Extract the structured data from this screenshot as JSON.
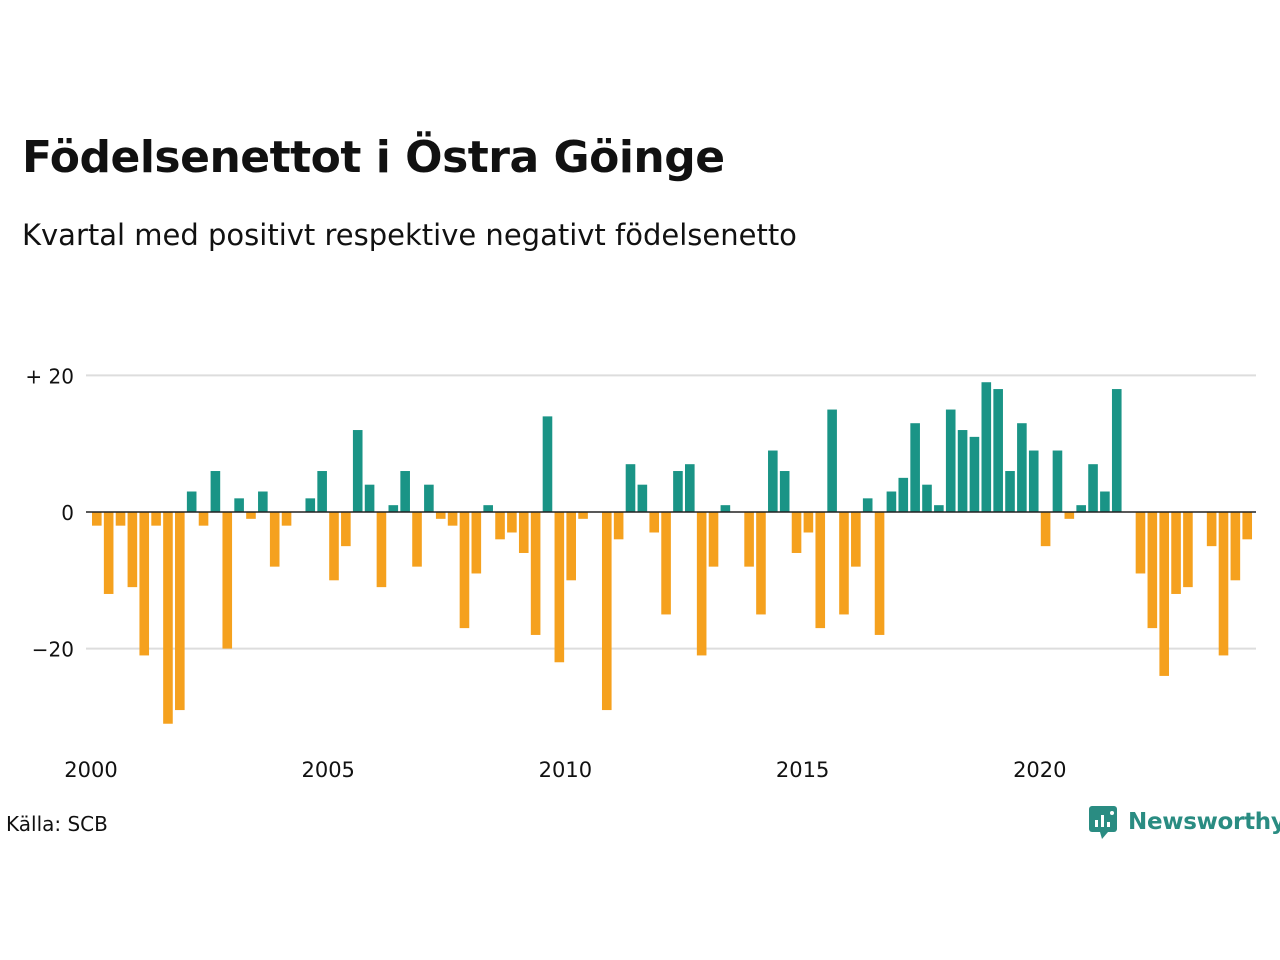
{
  "title": "Födelsenettot i Östra Göinge",
  "subtitle": "Kvartal med positivt respektive negativt födelsenetto",
  "source": "Källa: SCB",
  "brand": {
    "name": "Newsworthy",
    "icon": "newsworthy-logo-icon",
    "color": "#2a8c82"
  },
  "colors": {
    "positive": "#1a9486",
    "negative": "#f5a11e",
    "grid": "#dddddd",
    "zero": "#222222"
  },
  "chart_data": {
    "type": "bar",
    "x_start": "2000 Q1",
    "frequency": "quarterly",
    "ylim": [
      -33,
      21
    ],
    "y_ticks": [
      {
        "value": 20,
        "label": "+ 20"
      },
      {
        "value": 0,
        "label": "0"
      },
      {
        "value": -20,
        "label": "−20"
      }
    ],
    "x_ticks": [
      "2000",
      "2005",
      "2010",
      "2015",
      "2020"
    ],
    "grid": true,
    "values": [
      -2,
      -12,
      -2,
      -11,
      -21,
      -2,
      -31,
      -29,
      3,
      -2,
      6,
      -20,
      2,
      -1,
      3,
      -8,
      -2,
      0,
      2,
      6,
      -10,
      -5,
      12,
      4,
      -11,
      1,
      6,
      -8,
      4,
      -1,
      -2,
      -17,
      -9,
      1,
      -4,
      -3,
      -6,
      -18,
      14,
      -22,
      -10,
      -1,
      0,
      -29,
      -4,
      7,
      4,
      -3,
      -15,
      6,
      7,
      -21,
      -8,
      1,
      0,
      -8,
      -15,
      9,
      6,
      -6,
      -3,
      -17,
      15,
      -15,
      -8,
      2,
      -18,
      3,
      5,
      13,
      4,
      1,
      15,
      12,
      11,
      19,
      18,
      6,
      13,
      9,
      -5,
      9,
      -1,
      1,
      7,
      3,
      18,
      0,
      -9,
      -17,
      -24,
      -12,
      -11,
      0,
      -5,
      -21,
      -10,
      -4
    ]
  }
}
